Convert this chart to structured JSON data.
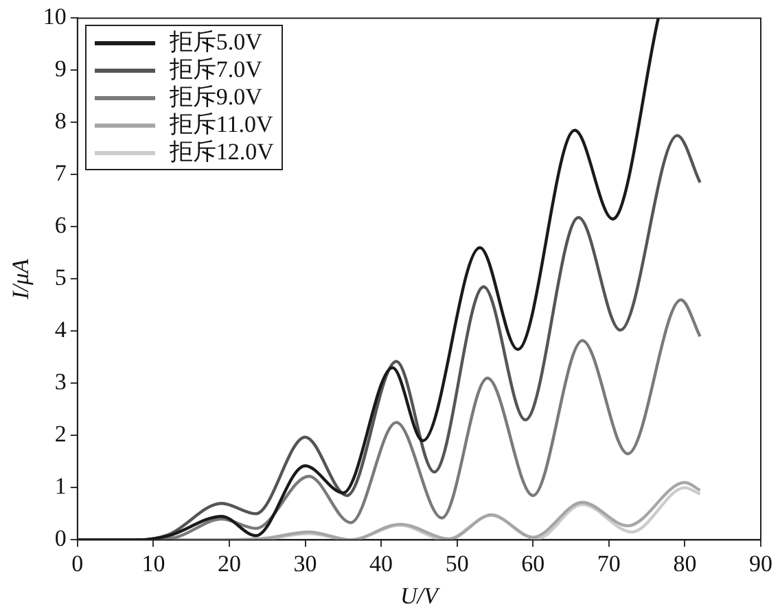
{
  "chart_data": {
    "type": "line",
    "xlabel": "U/V",
    "ylabel": "I/μA",
    "xlim": [
      0,
      90
    ],
    "xticks": [
      0,
      10,
      20,
      30,
      40,
      50,
      60,
      70,
      80,
      90
    ],
    "ylim": [
      0,
      10
    ],
    "yticks": [
      0,
      1,
      2,
      3,
      4,
      5,
      6,
      7,
      8,
      9,
      10
    ],
    "grid": false,
    "legend": "top left",
    "marker": "none",
    "line_style": "solid",
    "series": [
      {
        "name": "拒斥5.0V",
        "color": "#1a1a1a",
        "x": [
          0,
          8,
          12,
          19,
          23.5,
          30,
          35,
          41.5,
          45.5,
          53,
          58,
          65.5,
          70.5,
          76.5
        ],
        "values": [
          0,
          0,
          0.08,
          0.45,
          0.08,
          1.42,
          0.9,
          3.3,
          1.9,
          5.6,
          3.65,
          7.85,
          6.15,
          10
        ]
      },
      {
        "name": "拒斥7.0V",
        "color": "#555555",
        "x": [
          0,
          8,
          12,
          19,
          23.5,
          30,
          35.5,
          42,
          47,
          53.5,
          59,
          66,
          71.5,
          79,
          82
        ],
        "values": [
          0,
          0,
          0.1,
          0.7,
          0.5,
          1.97,
          0.85,
          3.42,
          1.3,
          4.85,
          2.3,
          6.18,
          4.02,
          7.75,
          6.85
        ]
      },
      {
        "name": "拒斥9.0V",
        "color": "#7a7a7a",
        "x": [
          0,
          9,
          13,
          19,
          23.5,
          30.5,
          36,
          42,
          48,
          54,
          60,
          66.5,
          72.5,
          79.5,
          82
        ],
        "values": [
          0,
          0,
          0.05,
          0.4,
          0.22,
          1.22,
          0.33,
          2.25,
          0.42,
          3.1,
          0.85,
          3.82,
          1.65,
          4.6,
          3.9
        ]
      },
      {
        "name": "拒斥11.0V",
        "color": "#a6a6a6",
        "x": [
          0,
          15,
          24,
          30.5,
          36,
          42.5,
          49,
          54.5,
          60,
          66.5,
          72.5,
          80,
          82
        ],
        "values": [
          0,
          0,
          0.02,
          0.15,
          0,
          0.3,
          0.02,
          0.48,
          0.05,
          0.72,
          0.27,
          1.1,
          0.95
        ]
      },
      {
        "name": "拒斥12.0V",
        "color": "#cccccc",
        "x": [
          0,
          15,
          24,
          30.5,
          36,
          42.5,
          48.5,
          54.5,
          60.5,
          66.5,
          73,
          80,
          82
        ],
        "values": [
          0,
          0,
          0.01,
          0.12,
          0,
          0.28,
          0,
          0.47,
          0.02,
          0.68,
          0.15,
          1.0,
          0.88
        ]
      }
    ]
  }
}
